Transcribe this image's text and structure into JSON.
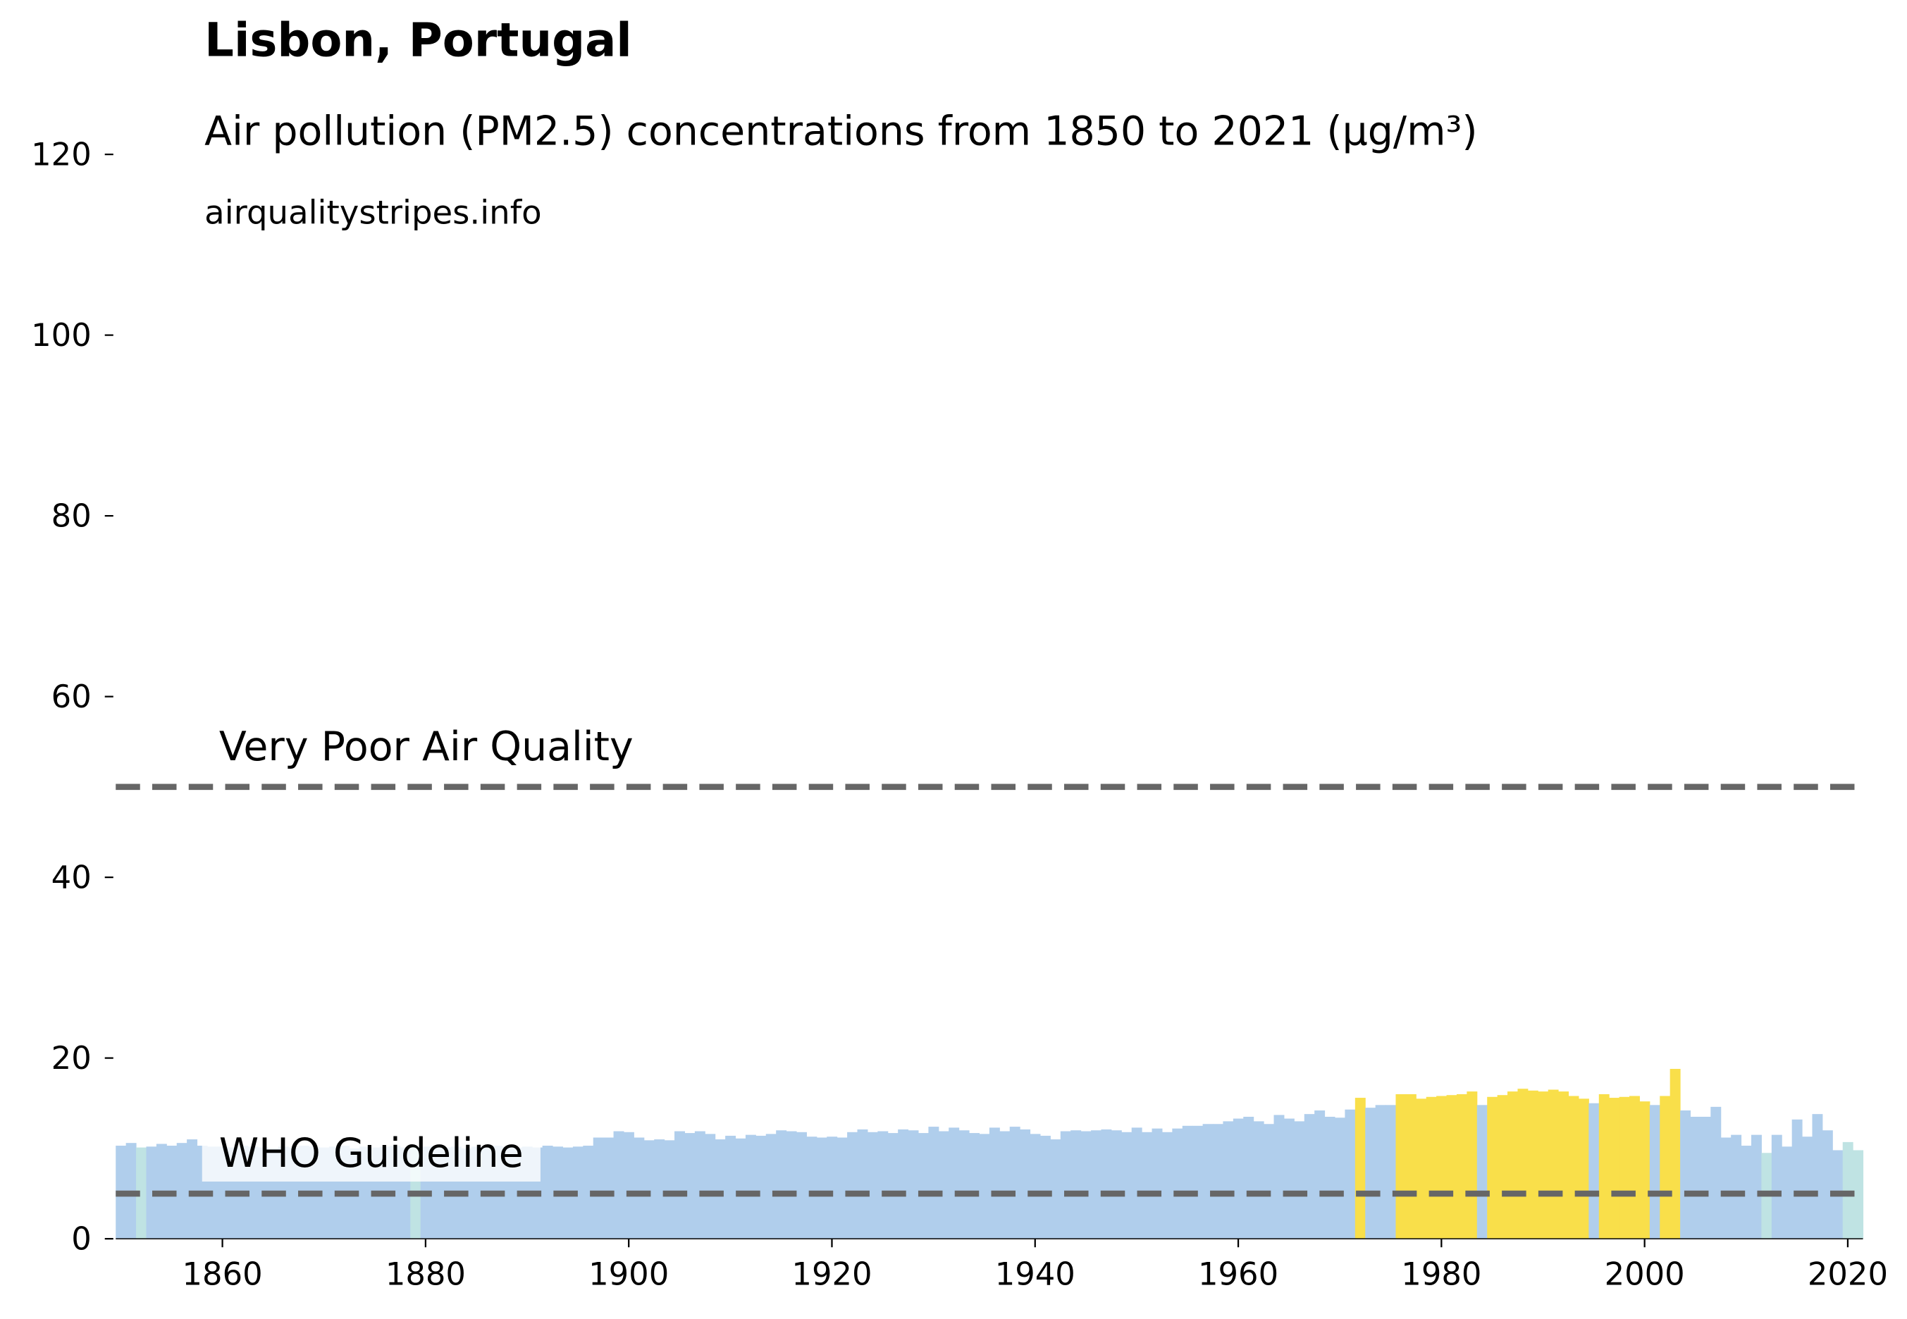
{
  "chart_data": {
    "type": "bar",
    "title": "Lisbon, Portugal",
    "subtitle": "Air pollution (PM2.5) concentrations from 1850 to 2021 (µg/m³)",
    "source": "airqualitystripes.info",
    "x": [
      1850,
      1851,
      1852,
      1853,
      1854,
      1855,
      1856,
      1857,
      1858,
      1859,
      1860,
      1861,
      1862,
      1863,
      1864,
      1865,
      1866,
      1867,
      1868,
      1869,
      1870,
      1871,
      1872,
      1873,
      1874,
      1875,
      1876,
      1877,
      1878,
      1879,
      1880,
      1881,
      1882,
      1883,
      1884,
      1885,
      1886,
      1887,
      1888,
      1889,
      1890,
      1891,
      1892,
      1893,
      1894,
      1895,
      1896,
      1897,
      1898,
      1899,
      1900,
      1901,
      1902,
      1903,
      1904,
      1905,
      1906,
      1907,
      1908,
      1909,
      1910,
      1911,
      1912,
      1913,
      1914,
      1915,
      1916,
      1917,
      1918,
      1919,
      1920,
      1921,
      1922,
      1923,
      1924,
      1925,
      1926,
      1927,
      1928,
      1929,
      1930,
      1931,
      1932,
      1933,
      1934,
      1935,
      1936,
      1937,
      1938,
      1939,
      1940,
      1941,
      1942,
      1943,
      1944,
      1945,
      1946,
      1947,
      1948,
      1949,
      1950,
      1951,
      1952,
      1953,
      1954,
      1955,
      1956,
      1957,
      1958,
      1959,
      1960,
      1961,
      1962,
      1963,
      1964,
      1965,
      1966,
      1967,
      1968,
      1969,
      1970,
      1971,
      1972,
      1973,
      1974,
      1975,
      1976,
      1977,
      1978,
      1979,
      1980,
      1981,
      1982,
      1983,
      1984,
      1985,
      1986,
      1987,
      1988,
      1989,
      1990,
      1991,
      1992,
      1993,
      1994,
      1995,
      1996,
      1997,
      1998,
      1999,
      2000,
      2001,
      2002,
      2003,
      2004,
      2005,
      2006,
      2007,
      2008,
      2009,
      2010,
      2011,
      2012,
      2013,
      2014,
      2015,
      2016,
      2017,
      2018,
      2019,
      2020,
      2021
    ],
    "values": [
      10.3,
      10.6,
      10.1,
      10.2,
      10.5,
      10.3,
      10.6,
      11.0,
      10.3,
      10.2,
      10.2,
      10.1,
      10.3,
      10.2,
      10.1,
      10.0,
      10.2,
      10.1,
      10.3,
      10.2,
      10.1,
      10.2,
      10.3,
      10.0,
      10.2,
      10.1,
      10.2,
      10.3,
      10.1,
      10.2,
      10.2,
      10.3,
      10.1,
      10.2,
      10.0,
      10.2,
      10.1,
      10.3,
      10.2,
      10.1,
      10.2,
      10.1,
      10.3,
      10.2,
      10.1,
      10.2,
      10.3,
      11.2,
      11.2,
      11.9,
      11.8,
      11.2,
      10.9,
      11.0,
      10.9,
      11.9,
      11.7,
      11.9,
      11.6,
      11.0,
      11.4,
      11.1,
      11.5,
      11.4,
      11.6,
      12.0,
      11.9,
      11.8,
      11.3,
      11.2,
      11.3,
      11.2,
      11.8,
      12.1,
      11.8,
      11.9,
      11.7,
      12.1,
      12.0,
      11.7,
      12.4,
      11.9,
      12.3,
      12.0,
      11.7,
      11.6,
      12.3,
      11.9,
      12.4,
      12.1,
      11.6,
      11.4,
      11.0,
      11.9,
      12.0,
      11.9,
      12.0,
      12.1,
      12.0,
      11.8,
      12.3,
      11.8,
      12.2,
      11.8,
      12.2,
      12.5,
      12.5,
      12.7,
      12.7,
      13.0,
      13.3,
      13.5,
      13.0,
      12.7,
      13.7,
      13.3,
      13.0,
      13.8,
      14.2,
      13.5,
      13.4,
      14.3,
      15.6,
      14.5,
      14.8,
      14.8,
      16.0,
      16.0,
      15.5,
      15.7,
      15.8,
      15.9,
      16.0,
      16.3,
      14.8,
      15.7,
      15.9,
      16.3,
      16.6,
      16.4,
      16.3,
      16.5,
      16.3,
      15.8,
      15.5,
      15.0,
      16.0,
      15.6,
      15.7,
      15.8,
      15.2,
      14.8,
      15.8,
      18.8,
      14.2,
      13.5,
      13.5,
      14.6,
      11.2,
      11.5,
      10.3,
      11.5,
      9.5,
      11.5,
      10.2,
      13.2,
      11.3,
      13.8,
      12.0,
      9.8,
      10.7,
      9.8
    ],
    "colors": [
      "#b0ceec",
      "#b0ceec",
      "#bfe3e3",
      "#b0ceec",
      "#b0ceec",
      "#b0ceec",
      "#b0ceec",
      "#b0ceec",
      "#b0ceec",
      "#b0ceec",
      "#b0ceec",
      "#b0ceec",
      "#b0ceec",
      "#b0ceec",
      "#b0ceec",
      "#b0ceec",
      "#b0ceec",
      "#b0ceec",
      "#b0ceec",
      "#b0ceec",
      "#b0ceec",
      "#b0ceec",
      "#b0ceec",
      "#b0ceec",
      "#b0ceec",
      "#b0ceec",
      "#b0ceec",
      "#b0ceec",
      "#b0ceec",
      "#bfe3e3",
      "#b0ceec",
      "#b0ceec",
      "#b0ceec",
      "#b0ceec",
      "#b0ceec",
      "#b0ceec",
      "#b0ceec",
      "#b0ceec",
      "#b0ceec",
      "#b0ceec",
      "#b0ceec",
      "#b0ceec",
      "#b0ceec",
      "#b0ceec",
      "#b0ceec",
      "#b0ceec",
      "#b0ceec",
      "#b0ceec",
      "#b0ceec",
      "#b0ceec",
      "#b0ceec",
      "#b0ceec",
      "#b0ceec",
      "#b0ceec",
      "#b0ceec",
      "#b0ceec",
      "#b0ceec",
      "#b0ceec",
      "#b0ceec",
      "#b0ceec",
      "#b0ceec",
      "#b0ceec",
      "#b0ceec",
      "#b0ceec",
      "#b0ceec",
      "#b0ceec",
      "#b0ceec",
      "#b0ceec",
      "#b0ceec",
      "#b0ceec",
      "#b0ceec",
      "#b0ceec",
      "#b0ceec",
      "#b0ceec",
      "#b0ceec",
      "#b0ceec",
      "#b0ceec",
      "#b0ceec",
      "#b0ceec",
      "#b0ceec",
      "#b0ceec",
      "#b0ceec",
      "#b0ceec",
      "#b0ceec",
      "#b0ceec",
      "#b0ceec",
      "#b0ceec",
      "#b0ceec",
      "#b0ceec",
      "#b0ceec",
      "#b0ceec",
      "#b0ceec",
      "#b0ceec",
      "#b0ceec",
      "#b0ceec",
      "#b0ceec",
      "#b0ceec",
      "#b0ceec",
      "#b0ceec",
      "#b0ceec",
      "#b0ceec",
      "#b0ceec",
      "#b0ceec",
      "#b0ceec",
      "#b0ceec",
      "#b0ceec",
      "#b0ceec",
      "#b0ceec",
      "#b0ceec",
      "#b0ceec",
      "#b0ceec",
      "#b0ceec",
      "#b0ceec",
      "#b0ceec",
      "#b0ceec",
      "#b0ceec",
      "#b0ceec",
      "#b0ceec",
      "#b0ceec",
      "#b0ceec",
      "#b0ceec",
      "#b0ceec",
      "#f9df4a",
      "#b0ceec",
      "#b0ceec",
      "#b0ceec",
      "#f9df4a",
      "#f9df4a",
      "#f9df4a",
      "#f9df4a",
      "#f9df4a",
      "#f9df4a",
      "#f9df4a",
      "#f9df4a",
      "#b0ceec",
      "#f9df4a",
      "#f9df4a",
      "#f9df4a",
      "#f9df4a",
      "#f9df4a",
      "#f9df4a",
      "#f9df4a",
      "#f9df4a",
      "#f9df4a",
      "#f9df4a",
      "#b0ceec",
      "#f9df4a",
      "#f9df4a",
      "#f9df4a",
      "#f9df4a",
      "#f9df4a",
      "#b0ceec",
      "#f9df4a",
      "#f9df4a",
      "#b0ceec",
      "#b0ceec",
      "#b0ceec",
      "#b0ceec",
      "#b0ceec",
      "#b0ceec",
      "#b0ceec",
      "#b0ceec",
      "#bfe3e3",
      "#b0ceec",
      "#b0ceec",
      "#b0ceec",
      "#b0ceec",
      "#b0ceec",
      "#b0ceec",
      "#b0ceec",
      "#bfe3e3",
      "#bfe3e3"
    ],
    "xlim": [
      1849.5,
      2021.5
    ],
    "xticks": [
      1860,
      1880,
      1900,
      1920,
      1940,
      1960,
      1980,
      2000,
      2020
    ],
    "ylim": [
      0,
      120
    ],
    "yticks": [
      0,
      20,
      40,
      60,
      80,
      100,
      120
    ],
    "grid": false,
    "lines": [
      {
        "value": 50,
        "label": "Very Poor Air Quality",
        "color": "#666666"
      },
      {
        "value": 5,
        "label": "WHO Guideline",
        "color": "#666666"
      }
    ]
  }
}
